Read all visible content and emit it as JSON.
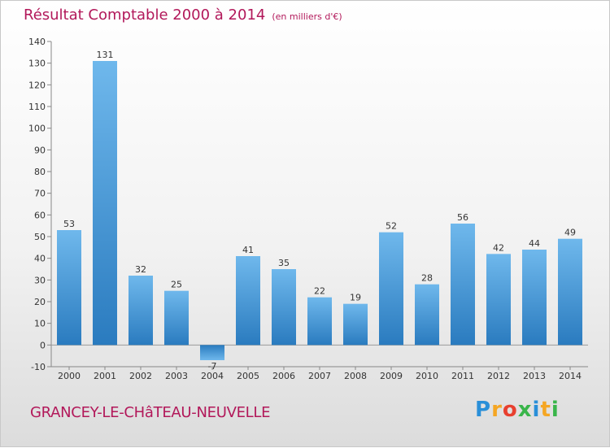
{
  "header": {
    "title": "Résultat Comptable 2000 à 2014",
    "subtitle": "(en milliers d'€)"
  },
  "footer": {
    "commune": "GRANCEY-LE-CHâTEAU-NEUVELLE",
    "logo_letters": [
      "P",
      "r",
      "o",
      "x",
      "i",
      "t",
      "i"
    ],
    "logo_colors": [
      "#2a8fd8",
      "#f5a623",
      "#e8402f",
      "#39b54a",
      "#2a8fd8",
      "#f5a623",
      "#39b54a"
    ]
  },
  "colors": {
    "bar_light": "#6fb8ec",
    "bar_dark": "#2a7bbf",
    "title": "#b2185a",
    "axis": "#888888",
    "grid": "#d6d6d6"
  },
  "chart_data": {
    "type": "bar",
    "title": "Résultat Comptable 2000 à 2014",
    "subtitle": "(en milliers d'€)",
    "xlabel": "",
    "ylabel": "",
    "categories": [
      "2000",
      "2001",
      "2002",
      "2003",
      "2004",
      "2005",
      "2006",
      "2007",
      "2008",
      "2009",
      "2010",
      "2011",
      "2012",
      "2013",
      "2014"
    ],
    "values": [
      53,
      131,
      32,
      25,
      -7,
      41,
      35,
      22,
      19,
      52,
      28,
      56,
      42,
      44,
      49
    ],
    "ylim": [
      -10,
      140
    ],
    "yticks": [
      -10,
      0,
      10,
      20,
      30,
      40,
      50,
      60,
      70,
      80,
      90,
      100,
      110,
      120,
      130,
      140
    ],
    "grid": false,
    "legend": "none"
  }
}
